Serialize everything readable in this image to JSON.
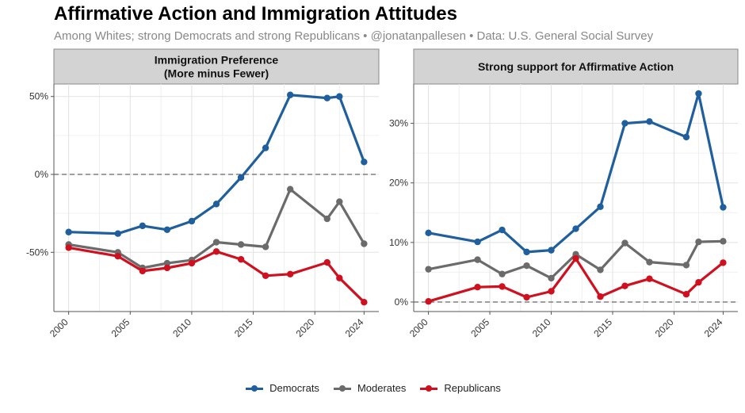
{
  "title": "Affirmative Action and Immigration Attitudes",
  "subtitle": "Among Whites; strong Democrats and strong Republicans • @jonatanpallesen • Data: U.S. General Social Survey",
  "colors": {
    "Democrats": "#1f5f9e",
    "Moderates": "#6b6b6b",
    "Republicans": "#d0101e"
  },
  "legend": [
    "Democrats",
    "Moderates",
    "Republicans"
  ],
  "chart_data": [
    {
      "type": "line",
      "title_lines": [
        "Immigration Preference",
        "(More minus Fewer)"
      ],
      "xticks": [
        2000,
        2005,
        2010,
        2015,
        2020,
        2024
      ],
      "xlim": [
        1998.8,
        2025.2
      ],
      "ylim": [
        -88,
        58
      ],
      "yticks": [
        {
          "value": 50,
          "label": "50%"
        },
        {
          "value": 0,
          "label": "0%"
        },
        {
          "value": -50,
          "label": "-50%"
        }
      ],
      "reference_line": 0,
      "series": [
        {
          "name": "Democrats",
          "x": [
            2000,
            2004,
            2006,
            2008,
            2010,
            2012,
            2014,
            2016,
            2018,
            2021,
            2022,
            2024
          ],
          "y": [
            -37,
            -38,
            -33,
            -35.5,
            -30,
            -19,
            -2,
            17,
            51,
            49,
            50,
            8
          ]
        },
        {
          "name": "Moderates",
          "x": [
            2000,
            2004,
            2006,
            2008,
            2010,
            2012,
            2014,
            2016,
            2018,
            2021,
            2022,
            2024
          ],
          "y": [
            -45,
            -50,
            -60,
            -57,
            -55,
            -43.5,
            -45,
            -46.5,
            -9.5,
            -28.5,
            -17.5,
            -44.5
          ]
        },
        {
          "name": "Republicans",
          "x": [
            2000,
            2004,
            2006,
            2008,
            2010,
            2012,
            2014,
            2016,
            2018,
            2021,
            2022,
            2024
          ],
          "y": [
            -47,
            -52.5,
            -62,
            -60,
            -57,
            -49.5,
            -54.5,
            -65,
            -64,
            -56.5,
            -66.5,
            -82
          ]
        }
      ]
    },
    {
      "type": "line",
      "title_lines": [
        "Strong support for Affirmative Action"
      ],
      "xticks": [
        2000,
        2005,
        2010,
        2015,
        2020,
        2024
      ],
      "xlim": [
        1998.8,
        2025.2
      ],
      "ylim": [
        -1.6,
        36.6
      ],
      "yticks": [
        {
          "value": 30,
          "label": "30%"
        },
        {
          "value": 20,
          "label": "20%"
        },
        {
          "value": 10,
          "label": "10%"
        },
        {
          "value": 0,
          "label": "0%"
        }
      ],
      "reference_line": 0,
      "series": [
        {
          "name": "Democrats",
          "x": [
            2000,
            2004,
            2006,
            2008,
            2010,
            2012,
            2014,
            2016,
            2018,
            2021,
            2022,
            2024
          ],
          "y": [
            11.6,
            10.1,
            12.1,
            8.4,
            8.7,
            12.3,
            16,
            30,
            30.3,
            27.7,
            35,
            15.9
          ]
        },
        {
          "name": "Moderates",
          "x": [
            2000,
            2004,
            2006,
            2008,
            2010,
            2012,
            2014,
            2016,
            2018,
            2021,
            2022,
            2024
          ],
          "y": [
            5.5,
            7.1,
            4.7,
            6.1,
            4,
            8,
            5.4,
            9.9,
            6.7,
            6.2,
            10.1,
            10.2
          ]
        },
        {
          "name": "Republicans",
          "x": [
            2000,
            2004,
            2006,
            2008,
            2010,
            2012,
            2014,
            2016,
            2018,
            2021,
            2022,
            2024
          ],
          "y": [
            0.1,
            2.5,
            2.6,
            0.8,
            1.8,
            7.3,
            0.9,
            2.7,
            3.9,
            1.3,
            3.3,
            6.6
          ]
        }
      ]
    }
  ]
}
